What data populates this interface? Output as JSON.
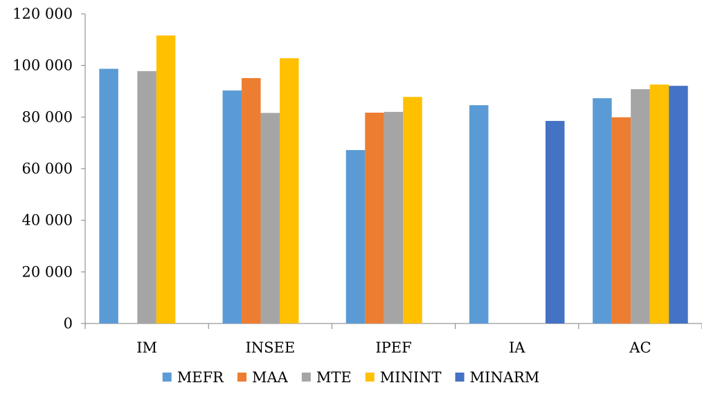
{
  "chart_data": {
    "type": "bar",
    "title": "",
    "xlabel": "",
    "ylabel": "",
    "categories": [
      "IM",
      "INSEE",
      "IPEF",
      "IA",
      "AC"
    ],
    "ylim": [
      0,
      120000
    ],
    "yticks": [
      0,
      20000,
      40000,
      60000,
      80000,
      100000,
      120000
    ],
    "ytick_labels": [
      "0",
      "20 000",
      "40 000",
      "60 000",
      "80 000",
      "100 000",
      "120 000"
    ],
    "grid": false,
    "legend_position": "bottom",
    "series": [
      {
        "name": "MEFR",
        "color": "#5b9bd5",
        "values": [
          98700,
          90300,
          67200,
          84600,
          87300
        ]
      },
      {
        "name": "MAA",
        "color": "#ed7d31",
        "values": [
          null,
          95100,
          81700,
          null,
          79900
        ]
      },
      {
        "name": "MTE",
        "color": "#a5a5a5",
        "values": [
          97800,
          81600,
          82000,
          null,
          90800
        ]
      },
      {
        "name": "MININT",
        "color": "#ffc000",
        "values": [
          111600,
          102800,
          87800,
          null,
          92600
        ]
      },
      {
        "name": "MINARM",
        "color": "#4472c4",
        "values": [
          null,
          null,
          null,
          78500,
          92100
        ]
      }
    ]
  }
}
